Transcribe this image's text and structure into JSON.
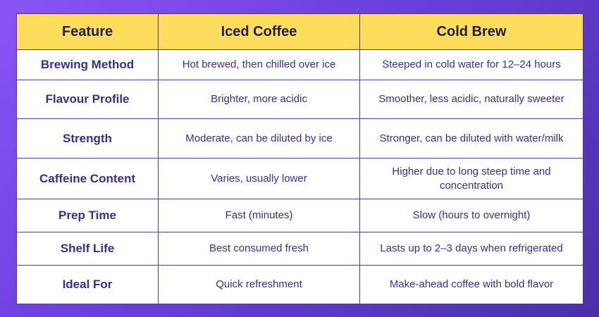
{
  "table": {
    "header": [
      "Feature",
      "Iced Coffee",
      "Cold Brew"
    ],
    "rows": [
      [
        "Brewing Method",
        "Hot brewed, then chilled over ice",
        "Steeped in cold water for 12–24 hours"
      ],
      [
        "Flavour Profile",
        "Brighter, more acidic",
        "Smoother, less acidic, naturally sweeter"
      ],
      [
        "Strength",
        "Moderate, can be diluted by ice",
        "Stronger, can be diluted with water/milk"
      ],
      [
        "Caffeine Content",
        "Varies, usually lower",
        "Higher due to long steep time and concentration"
      ],
      [
        "Prep Time",
        "Fast (minutes)",
        "Slow (hours to overnight)"
      ],
      [
        "Shelf Life",
        "Best consumed fresh",
        "Lasts up to 2–3 days when refrigerated"
      ],
      [
        "Ideal For",
        "Quick refreshment",
        "Make-ahead coffee with bold flavor"
      ]
    ]
  }
}
